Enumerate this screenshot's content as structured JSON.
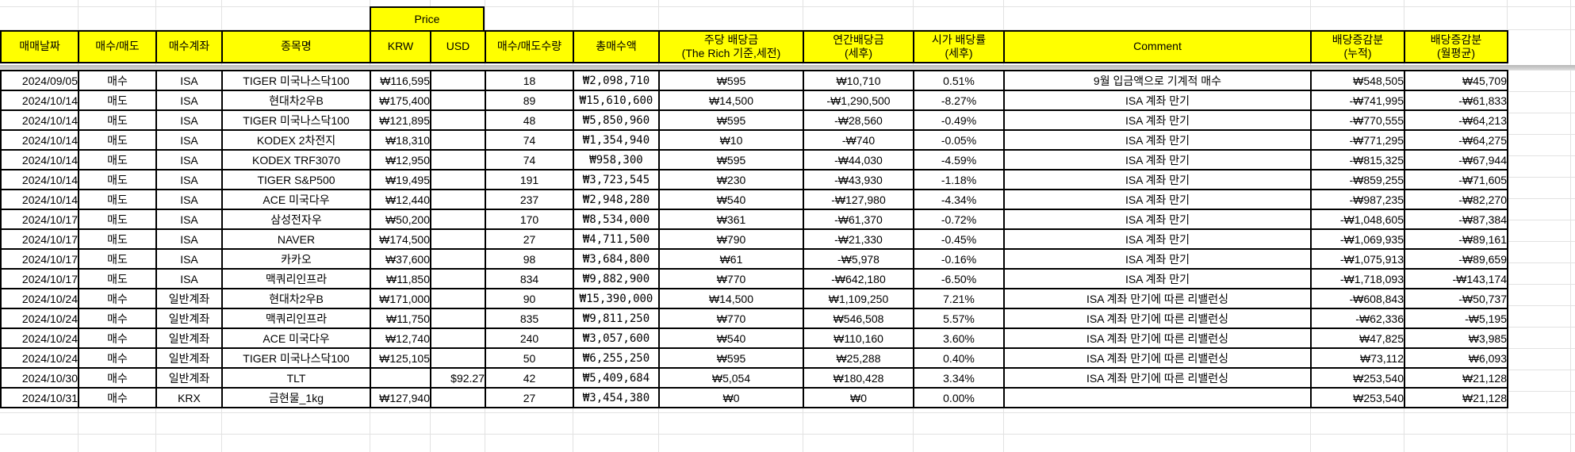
{
  "sheet": {
    "price_group_label": "Price",
    "columns": [
      {
        "key": "date",
        "label": "매매날짜"
      },
      {
        "key": "side",
        "label": "매수/매도"
      },
      {
        "key": "account",
        "label": "매수계좌"
      },
      {
        "key": "name",
        "label": "종목명"
      },
      {
        "key": "krw",
        "label": "KRW"
      },
      {
        "key": "usd",
        "label": "USD"
      },
      {
        "key": "qty",
        "label": "매수/매도수량"
      },
      {
        "key": "total",
        "label": "총매수액"
      },
      {
        "key": "per_share",
        "label": "주당 배당금\n(The Rich 기준,세전)"
      },
      {
        "key": "annual",
        "label": "연간배당금\n(세후)"
      },
      {
        "key": "yield",
        "label": "시가 배당률\n(세후)"
      },
      {
        "key": "comment",
        "label": "Comment"
      },
      {
        "key": "cum",
        "label": "배당증감분\n(누적)"
      },
      {
        "key": "monthly",
        "label": "배당증감분\n(월평균)"
      }
    ],
    "side_values": {
      "buy": "매수",
      "sell": "매도"
    },
    "colors": {
      "header_bg": "#ffff00",
      "buy_bg": "#f4cccc",
      "sell_bg": "#cfe2f3",
      "grid_faint": "#e2e2e2",
      "border": "#000000"
    },
    "rows": [
      {
        "date": "2024/09/05",
        "side": "매수",
        "account": "ISA",
        "name": "TIGER 미국나스닥100",
        "krw": "₩116,595",
        "usd": "",
        "qty": "18",
        "total": "₩2,098,710",
        "per_share": "₩595",
        "annual": "₩10,710",
        "yield": "0.51%",
        "comment": "9월 입금액으로 기계적 매수",
        "cum": "₩548,505",
        "monthly": "₩45,709"
      },
      {
        "date": "2024/10/14",
        "side": "매도",
        "account": "ISA",
        "name": "현대차2우B",
        "krw": "₩175,400",
        "usd": "",
        "qty": "89",
        "total": "₩15,610,600",
        "per_share": "₩14,500",
        "annual": "-₩1,290,500",
        "yield": "-8.27%",
        "comment": "ISA 계좌 만기",
        "cum": "-₩741,995",
        "monthly": "-₩61,833"
      },
      {
        "date": "2024/10/14",
        "side": "매도",
        "account": "ISA",
        "name": "TIGER 미국나스닥100",
        "krw": "₩121,895",
        "usd": "",
        "qty": "48",
        "total": "₩5,850,960",
        "per_share": "₩595",
        "annual": "-₩28,560",
        "yield": "-0.49%",
        "comment": "ISA 계좌 만기",
        "cum": "-₩770,555",
        "monthly": "-₩64,213"
      },
      {
        "date": "2024/10/14",
        "side": "매도",
        "account": "ISA",
        "name": "KODEX 2차전지",
        "krw": "₩18,310",
        "usd": "",
        "qty": "74",
        "total": "₩1,354,940",
        "per_share": "₩10",
        "annual": "-₩740",
        "yield": "-0.05%",
        "comment": "ISA 계좌 만기",
        "cum": "-₩771,295",
        "monthly": "-₩64,275"
      },
      {
        "date": "2024/10/14",
        "side": "매도",
        "account": "ISA",
        "name": "KODEX TRF3070",
        "krw": "₩12,950",
        "usd": "",
        "qty": "74",
        "total": "₩958,300",
        "per_share": "₩595",
        "annual": "-₩44,030",
        "yield": "-4.59%",
        "comment": "ISA 계좌 만기",
        "cum": "-₩815,325",
        "monthly": "-₩67,944"
      },
      {
        "date": "2024/10/14",
        "side": "매도",
        "account": "ISA",
        "name": "TIGER S&P500",
        "krw": "₩19,495",
        "usd": "",
        "qty": "191",
        "total": "₩3,723,545",
        "per_share": "₩230",
        "annual": "-₩43,930",
        "yield": "-1.18%",
        "comment": "ISA 계좌 만기",
        "cum": "-₩859,255",
        "monthly": "-₩71,605"
      },
      {
        "date": "2024/10/14",
        "side": "매도",
        "account": "ISA",
        "name": "ACE 미국다우",
        "krw": "₩12,440",
        "usd": "",
        "qty": "237",
        "total": "₩2,948,280",
        "per_share": "₩540",
        "annual": "-₩127,980",
        "yield": "-4.34%",
        "comment": "ISA 계좌 만기",
        "cum": "-₩987,235",
        "monthly": "-₩82,270"
      },
      {
        "date": "2024/10/17",
        "side": "매도",
        "account": "ISA",
        "name": "삼성전자우",
        "krw": "₩50,200",
        "usd": "",
        "qty": "170",
        "total": "₩8,534,000",
        "per_share": "₩361",
        "annual": "-₩61,370",
        "yield": "-0.72%",
        "comment": "ISA 계좌 만기",
        "cum": "-₩1,048,605",
        "monthly": "-₩87,384"
      },
      {
        "date": "2024/10/17",
        "side": "매도",
        "account": "ISA",
        "name": "NAVER",
        "krw": "₩174,500",
        "usd": "",
        "qty": "27",
        "total": "₩4,711,500",
        "per_share": "₩790",
        "annual": "-₩21,330",
        "yield": "-0.45%",
        "comment": "ISA 계좌 만기",
        "cum": "-₩1,069,935",
        "monthly": "-₩89,161"
      },
      {
        "date": "2024/10/17",
        "side": "매도",
        "account": "ISA",
        "name": "카카오",
        "krw": "₩37,600",
        "usd": "",
        "qty": "98",
        "total": "₩3,684,800",
        "per_share": "₩61",
        "annual": "-₩5,978",
        "yield": "-0.16%",
        "comment": "ISA 계좌 만기",
        "cum": "-₩1,075,913",
        "monthly": "-₩89,659"
      },
      {
        "date": "2024/10/17",
        "side": "매도",
        "account": "ISA",
        "name": "맥쿼리인프라",
        "krw": "₩11,850",
        "usd": "",
        "qty": "834",
        "total": "₩9,882,900",
        "per_share": "₩770",
        "annual": "-₩642,180",
        "yield": "-6.50%",
        "comment": "ISA 계좌 만기",
        "cum": "-₩1,718,093",
        "monthly": "-₩143,174"
      },
      {
        "date": "2024/10/24",
        "side": "매수",
        "account": "일반계좌",
        "name": "현대차2우B",
        "krw": "₩171,000",
        "usd": "",
        "qty": "90",
        "total": "₩15,390,000",
        "per_share": "₩14,500",
        "annual": "₩1,109,250",
        "yield": "7.21%",
        "comment": "ISA 계좌 만기에 따른 리밸런싱",
        "cum": "-₩608,843",
        "monthly": "-₩50,737"
      },
      {
        "date": "2024/10/24",
        "side": "매수",
        "account": "일반계좌",
        "name": "맥쿼리인프라",
        "krw": "₩11,750",
        "usd": "",
        "qty": "835",
        "total": "₩9,811,250",
        "per_share": "₩770",
        "annual": "₩546,508",
        "yield": "5.57%",
        "comment": "ISA 계좌 만기에 따른 리밸런싱",
        "cum": "-₩62,336",
        "monthly": "-₩5,195"
      },
      {
        "date": "2024/10/24",
        "side": "매수",
        "account": "일반계좌",
        "name": "ACE 미국다우",
        "krw": "₩12,740",
        "usd": "",
        "qty": "240",
        "total": "₩3,057,600",
        "per_share": "₩540",
        "annual": "₩110,160",
        "yield": "3.60%",
        "comment": "ISA 계좌 만기에 따른 리밸런싱",
        "cum": "₩47,825",
        "monthly": "₩3,985"
      },
      {
        "date": "2024/10/24",
        "side": "매수",
        "account": "일반계좌",
        "name": "TIGER 미국나스닥100",
        "krw": "₩125,105",
        "usd": "",
        "qty": "50",
        "total": "₩6,255,250",
        "per_share": "₩595",
        "annual": "₩25,288",
        "yield": "0.40%",
        "comment": "ISA 계좌 만기에 따른 리밸런싱",
        "cum": "₩73,112",
        "monthly": "₩6,093"
      },
      {
        "date": "2024/10/30",
        "side": "매수",
        "account": "일반계좌",
        "name": "TLT",
        "krw": "",
        "usd": "$92.27",
        "qty": "42",
        "total": "₩5,409,684",
        "per_share": "₩5,054",
        "annual": "₩180,428",
        "yield": "3.34%",
        "comment": "ISA 계좌 만기에 따른 리밸런싱",
        "cum": "₩253,540",
        "monthly": "₩21,128"
      },
      {
        "date": "2024/10/31",
        "side": "매수",
        "account": "KRX",
        "name": "금현물_1kg",
        "krw": "₩127,940",
        "usd": "",
        "qty": "27",
        "total": "₩3,454,380",
        "per_share": "₩0",
        "annual": "₩0",
        "yield": "0.00%",
        "comment": "",
        "cum": "₩253,540",
        "monthly": "₩21,128"
      }
    ]
  }
}
